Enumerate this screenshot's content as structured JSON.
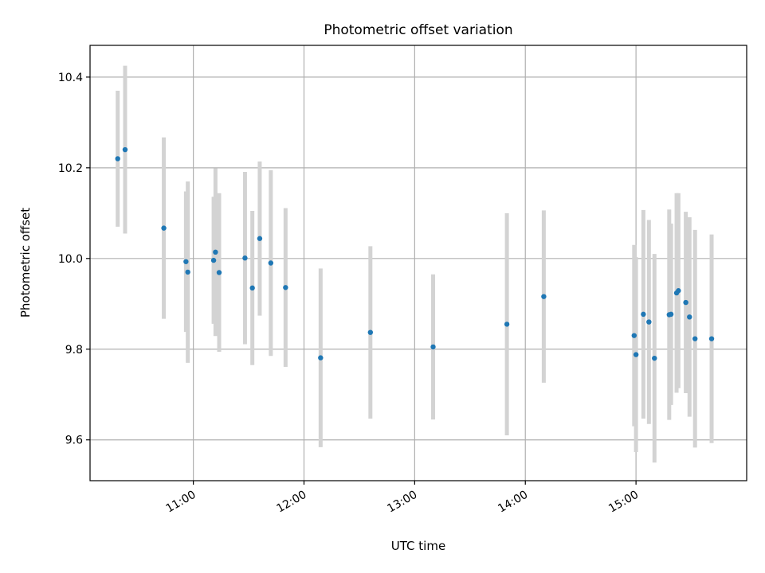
{
  "chart_data": {
    "type": "scatter",
    "title": "Photometric offset variation",
    "xlabel": "UTC time",
    "ylabel": "Photometric offset",
    "x_ticks": [
      "11:00",
      "12:00",
      "13:00",
      "14:00",
      "15:00"
    ],
    "y_ticks": [
      "9.6",
      "9.8",
      "10.0",
      "10.2",
      "10.4"
    ],
    "xlim": [
      "10:04",
      "16:00"
    ],
    "ylim": [
      9.51,
      10.47
    ],
    "grid": true,
    "point_color": "#1f77b4",
    "errorbar_color": "#d3d3d3",
    "points": [
      {
        "x": "10:19",
        "y": 10.22,
        "yerr": 0.15
      },
      {
        "x": "10:23",
        "y": 10.24,
        "yerr": 0.185
      },
      {
        "x": "10:44",
        "y": 10.067,
        "yerr": 0.2
      },
      {
        "x": "10:56",
        "y": 9.993,
        "yerr": 0.155
      },
      {
        "x": "10:57",
        "y": 9.97,
        "yerr": 0.2
      },
      {
        "x": "11:11",
        "y": 9.996,
        "yerr": 0.14
      },
      {
        "x": "11:12",
        "y": 10.014,
        "yerr": 0.185
      },
      {
        "x": "11:14",
        "y": 9.969,
        "yerr": 0.175
      },
      {
        "x": "11:28",
        "y": 10.001,
        "yerr": 0.19
      },
      {
        "x": "11:32",
        "y": 9.935,
        "yerr": 0.17
      },
      {
        "x": "11:36",
        "y": 10.044,
        "yerr": 0.17
      },
      {
        "x": "11:42",
        "y": 9.99,
        "yerr": 0.205
      },
      {
        "x": "11:50",
        "y": 9.936,
        "yerr": 0.175
      },
      {
        "x": "12:09",
        "y": 9.781,
        "yerr": 0.197
      },
      {
        "x": "12:36",
        "y": 9.837,
        "yerr": 0.19
      },
      {
        "x": "13:10",
        "y": 9.805,
        "yerr": 0.16
      },
      {
        "x": "13:50",
        "y": 9.855,
        "yerr": 0.245
      },
      {
        "x": "14:10",
        "y": 9.916,
        "yerr": 0.19
      },
      {
        "x": "14:59",
        "y": 9.83,
        "yerr": 0.2
      },
      {
        "x": "15:00",
        "y": 9.788,
        "yerr": 0.215
      },
      {
        "x": "15:04",
        "y": 9.877,
        "yerr": 0.23
      },
      {
        "x": "15:07",
        "y": 9.86,
        "yerr": 0.225
      },
      {
        "x": "15:10",
        "y": 9.78,
        "yerr": 0.23
      },
      {
        "x": "15:18",
        "y": 9.876,
        "yerr": 0.232
      },
      {
        "x": "15:19",
        "y": 9.877,
        "yerr": 0.2
      },
      {
        "x": "15:22",
        "y": 9.924,
        "yerr": 0.22
      },
      {
        "x": "15:23",
        "y": 9.929,
        "yerr": 0.215
      },
      {
        "x": "15:27",
        "y": 9.903,
        "yerr": 0.2
      },
      {
        "x": "15:29",
        "y": 9.871,
        "yerr": 0.22
      },
      {
        "x": "15:32",
        "y": 9.823,
        "yerr": 0.24
      },
      {
        "x": "15:41",
        "y": 9.823,
        "yerr": 0.23
      }
    ]
  }
}
